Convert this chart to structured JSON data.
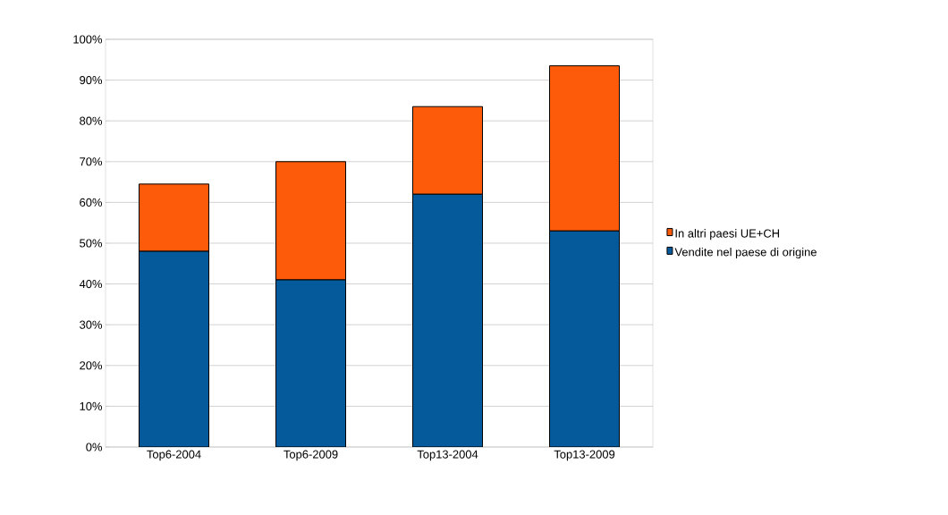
{
  "chart_data": {
    "type": "bar",
    "stacked": true,
    "categories": [
      "Top6-2004",
      "Top6-2009",
      "Top13-2004",
      "Top13-2009"
    ],
    "series": [
      {
        "name": "Vendite nel paese di origine",
        "color": "#045a9a",
        "values": [
          48,
          41,
          62,
          53
        ]
      },
      {
        "name": "In altri paesi UE+CH",
        "color": "#fd5a0a",
        "values": [
          16.5,
          29,
          21.5,
          40.5
        ]
      }
    ],
    "ylim": [
      0,
      100
    ],
    "yticks": [
      {
        "value": 0,
        "label": "0%"
      },
      {
        "value": 10,
        "label": "10%"
      },
      {
        "value": 20,
        "label": "20%"
      },
      {
        "value": 30,
        "label": "30%"
      },
      {
        "value": 40,
        "label": "40%"
      },
      {
        "value": 50,
        "label": "50%"
      },
      {
        "value": 60,
        "label": "60%"
      },
      {
        "value": 70,
        "label": "70%"
      },
      {
        "value": 80,
        "label": "80%"
      },
      {
        "value": 90,
        "label": "90%"
      },
      {
        "value": 100,
        "label": "100%"
      }
    ],
    "grid": "y",
    "legend": "right"
  }
}
